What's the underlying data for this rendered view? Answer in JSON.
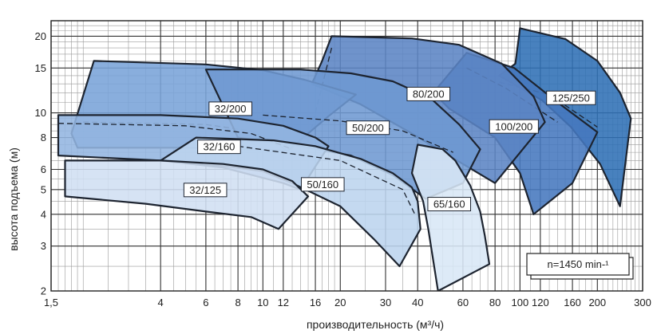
{
  "chart_data": {
    "type": "area",
    "x_scale": "log",
    "y_scale": "log",
    "xlabel": "производительность (м³/ч)",
    "ylabel": "высота подъема (м)",
    "xlim": [
      1.5,
      300
    ],
    "ylim": [
      2,
      23
    ],
    "x_ticks": [
      {
        "value": 1.5,
        "label": "1,5"
      },
      {
        "value": 4,
        "label": "4"
      },
      {
        "value": 6,
        "label": "6"
      },
      {
        "value": 8,
        "label": "8"
      },
      {
        "value": 10,
        "label": "10"
      },
      {
        "value": 12,
        "label": "12"
      },
      {
        "value": 16,
        "label": "16"
      },
      {
        "value": 20,
        "label": "20"
      },
      {
        "value": 30,
        "label": "30"
      },
      {
        "value": 40,
        "label": "40"
      },
      {
        "value": 60,
        "label": "60"
      },
      {
        "value": 80,
        "label": "80"
      },
      {
        "value": 100,
        "label": "100"
      },
      {
        "value": 120,
        "label": "120"
      },
      {
        "value": 160,
        "label": "160"
      },
      {
        "value": 200,
        "label": "200"
      },
      {
        "value": 300,
        "label": "300"
      }
    ],
    "y_ticks": [
      {
        "value": 2,
        "label": "2"
      },
      {
        "value": 3,
        "label": "3"
      },
      {
        "value": 4,
        "label": "4"
      },
      {
        "value": 5,
        "label": "5"
      },
      {
        "value": 6,
        "label": "6"
      },
      {
        "value": 8,
        "label": "8"
      },
      {
        "value": 10,
        "label": "10"
      },
      {
        "value": 15,
        "label": "15"
      },
      {
        "value": 20,
        "label": "20"
      }
    ],
    "grid": true,
    "note": "n=1450 min-¹",
    "note_position": "bottom-right",
    "series": [
      {
        "name": "125/250",
        "color": "#2f6fb5",
        "outline": [
          [
            100,
            21.5
          ],
          [
            150,
            19.5
          ],
          [
            200,
            16
          ],
          [
            245,
            12
          ],
          [
            270,
            9.5
          ],
          [
            245,
            4.3
          ],
          [
            205,
            6.3
          ],
          [
            158,
            8.8
          ],
          [
            122,
            11.2
          ],
          [
            83,
            14
          ],
          [
            96,
            15.6
          ]
        ],
        "dashed": [
          [
            83,
            13.2
          ],
          [
            130,
            11.8
          ],
          [
            200,
            8.8
          ]
        ]
      },
      {
        "name": "100/200",
        "color": "#4677be",
        "outline": [
          [
            62,
            17.2
          ],
          [
            95,
            15
          ],
          [
            140,
            11
          ],
          [
            200,
            8.4
          ],
          [
            160,
            5.3
          ],
          [
            113,
            4
          ],
          [
            100,
            5.8
          ],
          [
            80,
            8
          ],
          [
            53,
            10.4
          ],
          [
            46,
            12
          ]
        ],
        "dashed": [
          [
            62,
            15
          ],
          [
            88,
            12.5
          ],
          [
            140,
            9.2
          ]
        ]
      },
      {
        "name": "80/200",
        "color": "#5b84c4",
        "outline": [
          [
            18.5,
            20
          ],
          [
            38,
            19.6
          ],
          [
            58,
            18.5
          ],
          [
            85,
            15.6
          ],
          [
            113,
            11.6
          ],
          [
            125,
            9.2
          ],
          [
            80,
            5.3
          ],
          [
            57,
            6.5
          ],
          [
            38,
            8.3
          ],
          [
            24,
            10.8
          ],
          [
            15.5,
            13
          ],
          [
            17,
            16
          ]
        ],
        "dashed": [
          [
            18.5,
            18
          ],
          [
            15.5,
            8.8
          ]
        ]
      },
      {
        "name": "32/200",
        "color": "#79a3d8",
        "outline": [
          [
            2.2,
            16
          ],
          [
            6,
            15.5
          ],
          [
            10,
            14.7
          ],
          [
            14.5,
            13.5
          ],
          [
            20,
            12.3
          ],
          [
            23,
            11.8
          ],
          [
            18,
            9.7
          ],
          [
            12.5,
            7.1
          ],
          [
            9,
            7.2
          ],
          [
            5,
            7.3
          ],
          [
            1.9,
            7.3
          ],
          [
            1.8,
            8.3
          ]
        ],
        "dashed": [
          [
            2,
            9.2
          ],
          [
            6,
            9
          ],
          [
            9,
            8.5
          ],
          [
            12.5,
            7.1
          ]
        ]
      },
      {
        "name": "50/200",
        "color": "#6e99d1",
        "outline": [
          [
            6,
            14.8
          ],
          [
            14,
            14.8
          ],
          [
            22,
            14.3
          ],
          [
            32,
            13.3
          ],
          [
            45,
            11.4
          ],
          [
            58,
            9
          ],
          [
            70,
            7.2
          ],
          [
            60,
            5.3
          ],
          [
            43,
            4.6
          ],
          [
            32,
            5.7
          ],
          [
            22,
            6.8
          ],
          [
            13,
            7.5
          ],
          [
            8,
            8
          ]
        ],
        "dashed": [
          [
            10,
            9.8
          ],
          [
            20,
            9.3
          ],
          [
            35,
            8.5
          ],
          [
            55,
            7
          ]
        ]
      },
      {
        "name": "32/160",
        "color": "#93b5e0",
        "outline": [
          [
            1.6,
            9.8
          ],
          [
            4,
            9.8
          ],
          [
            8,
            9.5
          ],
          [
            12,
            8.9
          ],
          [
            16,
            8
          ],
          [
            18,
            7.4
          ],
          [
            14,
            5
          ],
          [
            12,
            5.3
          ],
          [
            7,
            6.1
          ],
          [
            4,
            6.5
          ],
          [
            1.6,
            6.8
          ]
        ],
        "dashed": [
          [
            1.6,
            9.1
          ],
          [
            5,
            8.9
          ],
          [
            9,
            8.3
          ],
          [
            13,
            7.2
          ]
        ]
      },
      {
        "name": "50/160",
        "color": "#bcd4ee",
        "outline": [
          [
            5.5,
            8
          ],
          [
            11,
            7.8
          ],
          [
            16,
            7.4
          ],
          [
            24,
            6.6
          ],
          [
            32,
            5.8
          ],
          [
            38,
            5.1
          ],
          [
            40,
            4.5
          ],
          [
            41,
            3.5
          ],
          [
            34,
            2.5
          ],
          [
            27,
            3.2
          ],
          [
            20,
            4.3
          ],
          [
            13,
            5.3
          ],
          [
            10,
            5.9
          ],
          [
            7,
            6.2
          ],
          [
            4,
            6.5
          ]
        ],
        "dashed": [
          [
            8,
            7.4
          ],
          [
            20,
            6.5
          ],
          [
            35,
            5
          ],
          [
            39,
            4
          ]
        ]
      },
      {
        "name": "32/125",
        "color": "#d0dff3",
        "outline": [
          [
            1.7,
            6.5
          ],
          [
            4,
            6.5
          ],
          [
            7,
            6.3
          ],
          [
            10,
            6
          ],
          [
            13,
            5.4
          ],
          [
            15,
            4.7
          ],
          [
            11.5,
            3.5
          ],
          [
            9,
            3.9
          ],
          [
            6,
            4.1
          ],
          [
            3.5,
            4.4
          ],
          [
            1.7,
            4.7
          ]
        ]
      },
      {
        "name": "65/160",
        "color": "#d8e7f6",
        "outline": [
          [
            40,
            7.5
          ],
          [
            50,
            7.2
          ],
          [
            56,
            6.5
          ],
          [
            64,
            5.2
          ],
          [
            70,
            4.1
          ],
          [
            73,
            3.3
          ],
          [
            76,
            2.55
          ],
          [
            48,
            2
          ],
          [
            44,
            3.5
          ],
          [
            42,
            4.5
          ],
          [
            38,
            5.8
          ]
        ]
      }
    ]
  }
}
